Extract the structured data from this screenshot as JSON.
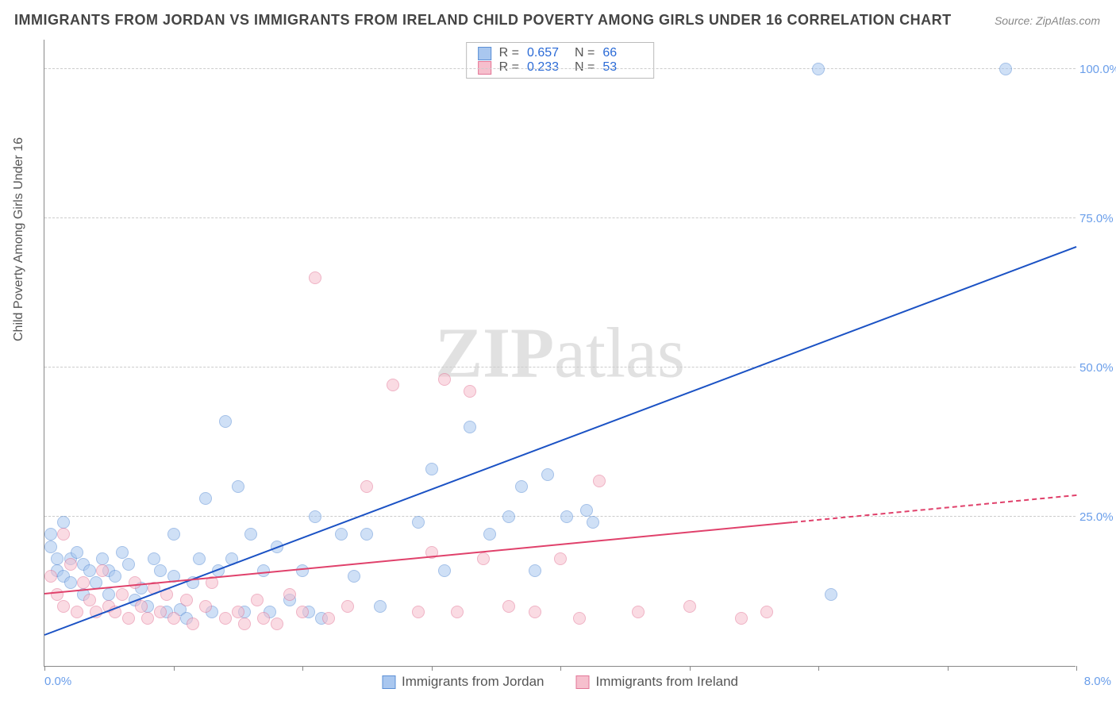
{
  "title": "IMMIGRANTS FROM JORDAN VS IMMIGRANTS FROM IRELAND CHILD POVERTY AMONG GIRLS UNDER 16 CORRELATION CHART",
  "source": "Source: ZipAtlas.com",
  "ylabel": "Child Poverty Among Girls Under 16",
  "watermark_a": "ZIP",
  "watermark_b": "atlas",
  "chart": {
    "type": "scatter",
    "xlim": [
      0.0,
      8.0
    ],
    "ylim": [
      0.0,
      105.0
    ],
    "x_tick_labels": [
      "0.0%",
      "8.0%"
    ],
    "x_minor_ticks": [
      0,
      1,
      2,
      3,
      4,
      5,
      6,
      7,
      8
    ],
    "y_ticks": [
      25.0,
      50.0,
      75.0,
      100.0
    ],
    "y_tick_labels": [
      "25.0%",
      "50.0%",
      "75.0%",
      "100.0%"
    ],
    "background_color": "#ffffff",
    "grid_color": "#cccccc",
    "title_fontsize": 18,
    "label_fontsize": 16,
    "tick_color": "#6a9eea",
    "marker_radius": 8,
    "marker_opacity": 0.55,
    "marker_stroke_width": 1.2,
    "series": [
      {
        "name": "Immigrants from Jordan",
        "label": "Immigrants from Jordan",
        "color_fill": "#a9c7ef",
        "color_stroke": "#5b8fd6",
        "trend_color": "#1b52c4",
        "trend_width": 2,
        "R": 0.657,
        "N": 66,
        "trend": {
          "x0": 0.0,
          "y0": 5.0,
          "x1": 8.0,
          "y1": 70.0
        },
        "trend_dash_from_x": null,
        "points": [
          [
            0.05,
            22
          ],
          [
            0.05,
            20
          ],
          [
            0.1,
            18
          ],
          [
            0.1,
            16
          ],
          [
            0.15,
            24
          ],
          [
            0.15,
            15
          ],
          [
            0.2,
            18
          ],
          [
            0.2,
            14
          ],
          [
            0.25,
            19
          ],
          [
            0.3,
            17
          ],
          [
            0.3,
            12
          ],
          [
            0.35,
            16
          ],
          [
            0.4,
            14
          ],
          [
            0.45,
            18
          ],
          [
            0.5,
            16
          ],
          [
            0.5,
            12
          ],
          [
            0.55,
            15
          ],
          [
            0.6,
            19
          ],
          [
            0.65,
            17
          ],
          [
            0.7,
            11
          ],
          [
            0.75,
            13
          ],
          [
            0.8,
            10
          ],
          [
            0.85,
            18
          ],
          [
            0.9,
            16
          ],
          [
            0.95,
            9
          ],
          [
            1.0,
            15
          ],
          [
            1.0,
            22
          ],
          [
            1.05,
            9.5
          ],
          [
            1.1,
            8
          ],
          [
            1.15,
            14
          ],
          [
            1.2,
            18
          ],
          [
            1.25,
            28
          ],
          [
            1.3,
            9
          ],
          [
            1.35,
            16
          ],
          [
            1.4,
            41
          ],
          [
            1.45,
            18
          ],
          [
            1.5,
            30
          ],
          [
            1.55,
            9
          ],
          [
            1.6,
            22
          ],
          [
            1.7,
            16
          ],
          [
            1.75,
            9
          ],
          [
            1.8,
            20
          ],
          [
            1.9,
            11
          ],
          [
            2.0,
            16
          ],
          [
            2.05,
            9
          ],
          [
            2.1,
            25
          ],
          [
            2.15,
            8
          ],
          [
            2.3,
            22
          ],
          [
            2.4,
            15
          ],
          [
            2.5,
            22
          ],
          [
            2.6,
            10
          ],
          [
            2.9,
            24
          ],
          [
            3.0,
            33
          ],
          [
            3.1,
            16
          ],
          [
            3.3,
            40
          ],
          [
            3.45,
            22
          ],
          [
            3.6,
            25
          ],
          [
            3.7,
            30
          ],
          [
            3.8,
            16
          ],
          [
            3.9,
            32
          ],
          [
            4.05,
            25
          ],
          [
            4.2,
            26
          ],
          [
            4.25,
            24
          ],
          [
            6.0,
            100
          ],
          [
            6.1,
            12
          ],
          [
            7.45,
            100
          ]
        ]
      },
      {
        "name": "Immigrants from Ireland",
        "label": "Immigrants from Ireland",
        "color_fill": "#f6bfcd",
        "color_stroke": "#e37697",
        "trend_color": "#e0416b",
        "trend_width": 2,
        "R": 0.233,
        "N": 53,
        "trend": {
          "x0": 0.0,
          "y0": 12.0,
          "x1": 8.0,
          "y1": 28.5
        },
        "trend_dash_from_x": 5.8,
        "points": [
          [
            0.05,
            15
          ],
          [
            0.1,
            12
          ],
          [
            0.15,
            22
          ],
          [
            0.15,
            10
          ],
          [
            0.2,
            17
          ],
          [
            0.25,
            9
          ],
          [
            0.3,
            14
          ],
          [
            0.35,
            11
          ],
          [
            0.4,
            9
          ],
          [
            0.45,
            16
          ],
          [
            0.5,
            10
          ],
          [
            0.55,
            9
          ],
          [
            0.6,
            12
          ],
          [
            0.65,
            8
          ],
          [
            0.7,
            14
          ],
          [
            0.75,
            10
          ],
          [
            0.8,
            8
          ],
          [
            0.85,
            13
          ],
          [
            0.9,
            9
          ],
          [
            0.95,
            12
          ],
          [
            1.0,
            8
          ],
          [
            1.1,
            11
          ],
          [
            1.15,
            7
          ],
          [
            1.25,
            10
          ],
          [
            1.3,
            14
          ],
          [
            1.4,
            8
          ],
          [
            1.5,
            9
          ],
          [
            1.55,
            7
          ],
          [
            1.65,
            11
          ],
          [
            1.7,
            8
          ],
          [
            1.8,
            7
          ],
          [
            1.9,
            12
          ],
          [
            2.0,
            9
          ],
          [
            2.1,
            65
          ],
          [
            2.2,
            8
          ],
          [
            2.35,
            10
          ],
          [
            2.5,
            30
          ],
          [
            2.7,
            47
          ],
          [
            2.9,
            9
          ],
          [
            3.0,
            19
          ],
          [
            3.1,
            48
          ],
          [
            3.2,
            9
          ],
          [
            3.3,
            46
          ],
          [
            3.4,
            18
          ],
          [
            3.6,
            10
          ],
          [
            3.8,
            9
          ],
          [
            4.0,
            18
          ],
          [
            4.15,
            8
          ],
          [
            4.3,
            31
          ],
          [
            4.6,
            9
          ],
          [
            5.0,
            10
          ],
          [
            5.4,
            8
          ],
          [
            5.6,
            9
          ]
        ]
      }
    ]
  },
  "legend": {
    "stats_labels": {
      "R": "R =",
      "N": "N ="
    }
  }
}
